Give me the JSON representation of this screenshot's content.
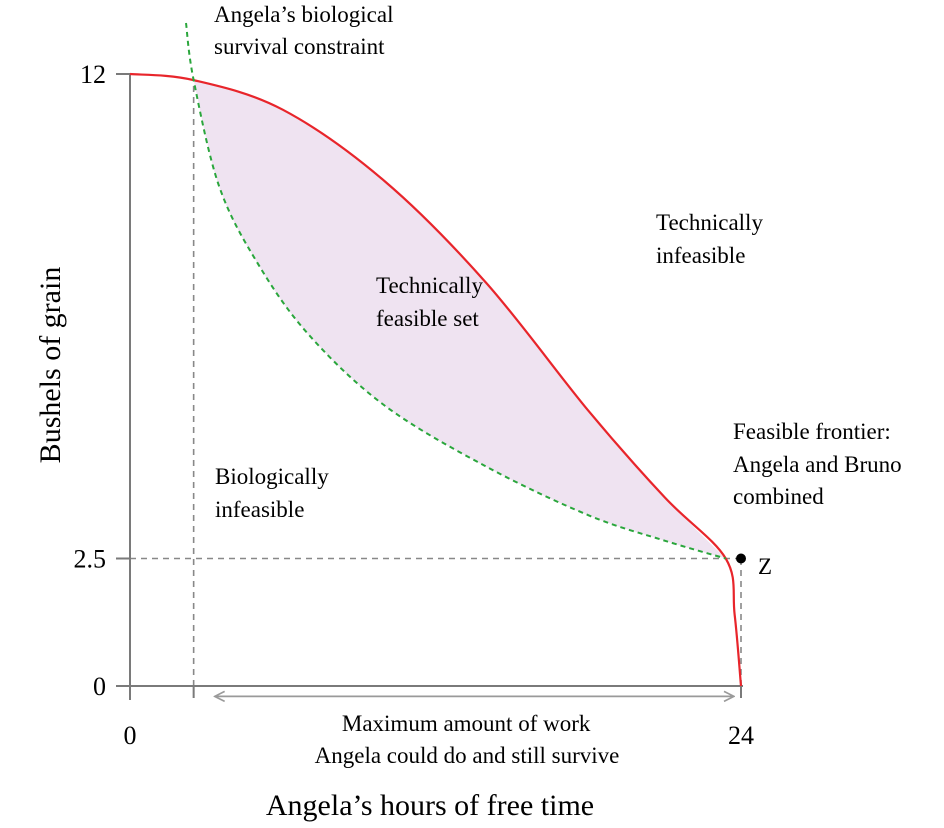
{
  "chart_data": {
    "type": "area",
    "title": "",
    "xlabel": "Angela’s hours of free time",
    "ylabel": "Bushels of grain",
    "xlim": [
      0,
      24
    ],
    "ylim": [
      0,
      12
    ],
    "x_ticks": [
      "0",
      "24"
    ],
    "y_ticks": [
      "12",
      "2.5",
      "0"
    ],
    "colors": {
      "frontier": "#e8252b",
      "survival": "#2aa63c",
      "feasible_fill": "#efe3f1",
      "reference": "#888888"
    },
    "series": [
      {
        "name": "Feasible frontier: Angela and Bruno combined",
        "style": "solid",
        "points": [
          [
            0,
            12
          ],
          [
            2.5,
            11.88
          ],
          [
            6,
            11.3
          ],
          [
            10,
            9.9
          ],
          [
            14,
            7.9
          ],
          [
            18,
            5.4
          ],
          [
            21,
            3.7
          ],
          [
            23.4,
            2.5
          ],
          [
            23.75,
            1.4
          ],
          [
            24,
            0
          ]
        ]
      },
      {
        "name": "Angela’s biological survival constraint",
        "style": "dashed",
        "points": [
          [
            2.2,
            13.0
          ],
          [
            2.5,
            11.88
          ],
          [
            3.5,
            9.8
          ],
          [
            5,
            8.3
          ],
          [
            7,
            6.9
          ],
          [
            10,
            5.5
          ],
          [
            14,
            4.3
          ],
          [
            18,
            3.35
          ],
          [
            21,
            2.85
          ],
          [
            23.4,
            2.5
          ]
        ]
      }
    ],
    "point": {
      "label": "Z",
      "x": 24,
      "y": 2.5
    },
    "reference_lines": [
      {
        "axis": "x",
        "value": 2.5,
        "from": 0,
        "to": 11.88
      },
      {
        "axis": "y",
        "value": 2.5,
        "from": 0,
        "to": 24
      },
      {
        "axis": "x",
        "value": 24,
        "from": 0,
        "to": 2.5
      }
    ],
    "span_arrow": {
      "from_x": 2.5,
      "to_x": 24,
      "at_y": -0.4
    },
    "region_labels": {
      "feasible_set": [
        "Technically",
        "feasible set"
      ],
      "technically_infeasible": [
        "Technically",
        "infeasible"
      ],
      "biologically_infeasible": [
        "Biologically",
        "infeasible"
      ]
    },
    "annotations": {
      "survival_constraint": [
        "Angela’s biological",
        "survival constraint"
      ],
      "frontier": [
        "Feasible frontier:",
        "Angela and Bruno",
        "combined"
      ],
      "max_work": [
        "Maximum amount of work",
        "Angela could do and still survive"
      ]
    },
    "grid": false,
    "legend": "none"
  }
}
